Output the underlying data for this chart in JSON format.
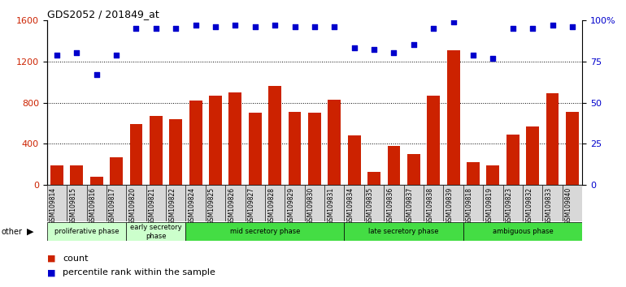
{
  "title": "GDS2052 / 201849_at",
  "samples": [
    "GSM109814",
    "GSM109815",
    "GSM109816",
    "GSM109817",
    "GSM109820",
    "GSM109821",
    "GSM109822",
    "GSM109824",
    "GSM109825",
    "GSM109826",
    "GSM109827",
    "GSM109828",
    "GSM109829",
    "GSM109830",
    "GSM109831",
    "GSM109834",
    "GSM109835",
    "GSM109836",
    "GSM109837",
    "GSM109838",
    "GSM109839",
    "GSM109818",
    "GSM109819",
    "GSM109823",
    "GSM109832",
    "GSM109833",
    "GSM109840"
  ],
  "counts": [
    190,
    195,
    80,
    270,
    590,
    670,
    640,
    820,
    870,
    900,
    700,
    960,
    710,
    700,
    830,
    480,
    130,
    380,
    300,
    870,
    1310,
    220,
    190,
    490,
    570,
    890,
    710
  ],
  "percentiles": [
    79,
    80,
    67,
    79,
    95,
    95,
    95,
    97,
    96,
    97,
    96,
    97,
    96,
    96,
    96,
    83,
    82,
    80,
    85,
    95,
    99,
    79,
    77,
    95,
    95,
    97,
    96
  ],
  "bar_color": "#cc2200",
  "dot_color": "#0000cc",
  "ylim_left": [
    0,
    1600
  ],
  "ylim_right": [
    0,
    100
  ],
  "yticks_left": [
    0,
    400,
    800,
    1200,
    1600
  ],
  "yticks_right": [
    0,
    25,
    50,
    75,
    100
  ],
  "hgrid_lines": [
    400,
    800,
    1200
  ],
  "phase_defs": [
    {
      "label": "proliferative phase",
      "start": 0,
      "end": 4,
      "color": "#ccffcc"
    },
    {
      "label": "early secretory\nphase",
      "start": 4,
      "end": 7,
      "color": "#ccffcc"
    },
    {
      "label": "mid secretory phase",
      "start": 7,
      "end": 15,
      "color": "#44dd44"
    },
    {
      "label": "late secretory phase",
      "start": 15,
      "end": 21,
      "color": "#44dd44"
    },
    {
      "label": "ambiguous phase",
      "start": 21,
      "end": 27,
      "color": "#44dd44"
    }
  ],
  "legend_count_label": "count",
  "legend_pct_label": "percentile rank within the sample"
}
